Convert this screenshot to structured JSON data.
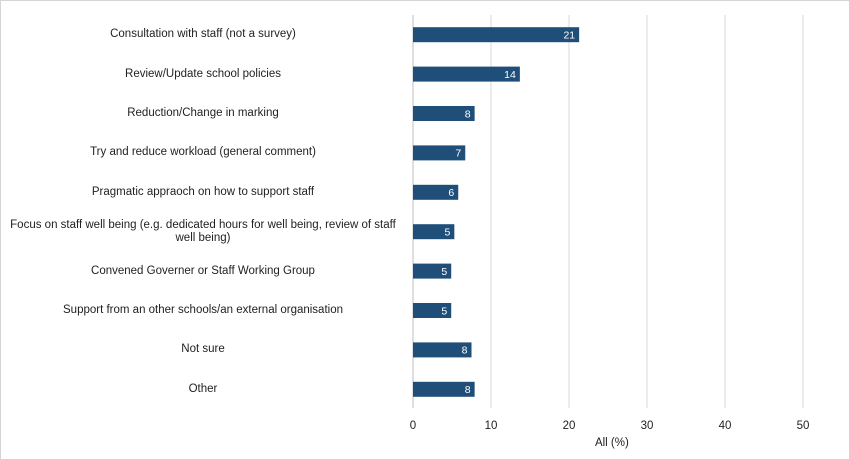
{
  "chart_data": {
    "type": "bar",
    "orientation": "horizontal",
    "categories": [
      "Consultation with staff (not a survey)",
      "Review/Update school policies",
      "Reduction/Change in marking",
      "Try and reduce workload (general comment)",
      "Pragmatic appraoch on how to support staff",
      "Focus on staff well being (e.g. dedicated hours for well being, review of staff well being)",
      "Convened Governer or Staff Working Group",
      "Support from an other schools/an external organisation",
      "Not sure",
      "Other"
    ],
    "values": [
      21,
      14,
      8,
      7,
      6,
      5,
      5,
      5,
      8,
      8
    ],
    "bar_lengths": [
      21.3,
      13.7,
      7.9,
      6.7,
      5.8,
      5.3,
      4.9,
      4.9,
      7.5,
      7.9
    ],
    "xlabel": "All (%)",
    "xlim": [
      0,
      50
    ],
    "xticks": [
      0,
      10,
      20,
      30,
      40,
      50
    ],
    "grid": true,
    "bar_color": "#1f4e79"
  }
}
